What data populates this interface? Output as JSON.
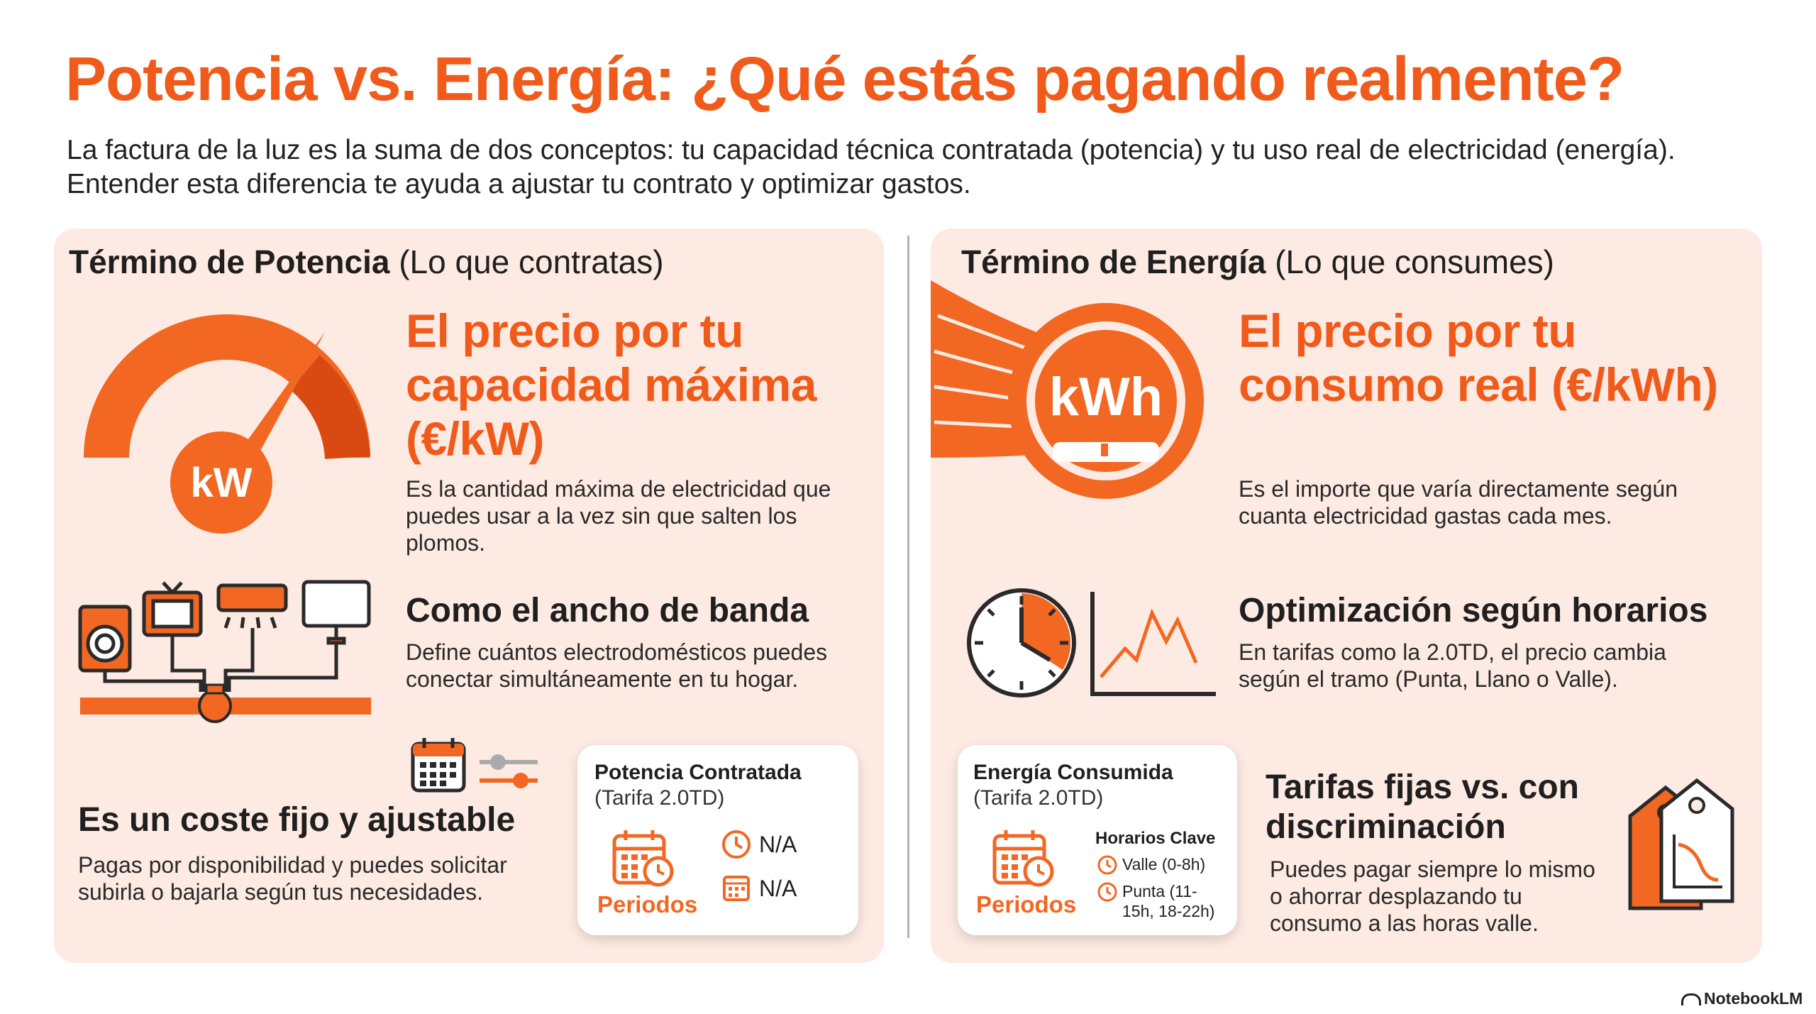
{
  "header": {
    "title": "Potencia vs. Energía: ¿Qué estás pagando realmente?",
    "subtitle": "La factura de la luz es la suma de dos conceptos: tu capacidad técnica contratada (potencia) y tu uso real de electricidad (energía). Entender esta diferencia te ayuda a ajustar tu contrato y optimizar gastos."
  },
  "left": {
    "heading_bold": "Término de Potencia",
    "heading_rest": "(Lo que contratas)",
    "gauge_label": "kW",
    "big_title": "El precio por tu capacidad máxima (€/kW)",
    "big_desc": "Es la cantidad máxima de electricidad que puedes usar a la vez sin que salten los plomos.",
    "bandwidth_title": "Como el ancho de banda",
    "bandwidth_desc": "Define cuántos electrodomésticos puedes conectar simultáneamente en tu hogar.",
    "fixed_title": "Es un coste fijo y ajustable",
    "fixed_desc": "Pagas por disponibilidad y puedes solicitar subirla o bajarla según tus necesidades.",
    "card": {
      "title": "Potencia Contratada",
      "subtitle": "(Tarifa 2.0TD)",
      "periods_label": "Periodos",
      "value1": "N/A",
      "value2": "N/A"
    }
  },
  "right": {
    "heading_bold": "Término de Energía",
    "heading_rest": "(Lo que consumes)",
    "meter_label": "kWh",
    "big_title": "El precio por tu consumo real (€/kWh)",
    "big_desc": "Es el importe que varía directamente según cuanta electricidad gastas cada mes.",
    "schedule_title": "Optimización según horarios",
    "schedule_desc": "En tarifas como la 2.0TD, el precio cambia según el tramo (Punta, Llano o Valle).",
    "tariffs_title": "Tarifas fijas vs. con discriminación",
    "tariffs_desc": "Puedes pagar siempre lo mismo o ahorrar desplazando tu consumo a las horas valle.",
    "card": {
      "title": "Energía Consumida",
      "subtitle": "(Tarifa 2.0TD)",
      "periods_label": "Periodos",
      "key_hours_title": "Horarios Clave",
      "valle": "Valle (0-8h)",
      "punta": "Punta (11-15h, 18-22h)"
    }
  },
  "footer": {
    "brand": "NotebookLM"
  },
  "colors": {
    "accent": "#f05a1a",
    "panel": "#fdeae2",
    "dark": "#1f1f1f"
  },
  "icons": [
    "gauge-icon",
    "appliances-icon",
    "calendar-icon",
    "slider-icon",
    "clock-icon",
    "meter-icon",
    "chart-line-icon",
    "price-tag-icon",
    "notebooklm-logo-icon"
  ]
}
